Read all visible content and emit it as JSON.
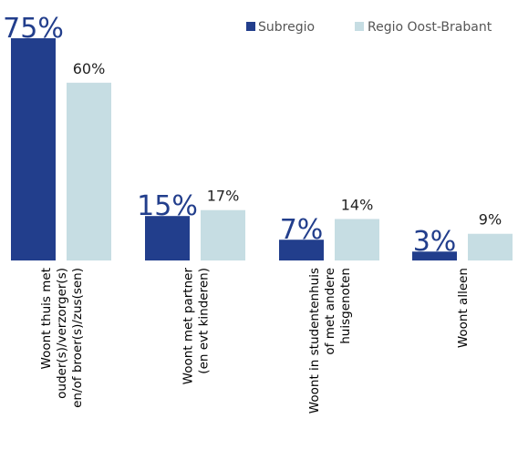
{
  "chart_data": {
    "type": "bar",
    "categories": [
      [
        "Woont thuis met",
        "ouder(s)/verzorger(s)",
        "en/of broer(s)/zus(sen)"
      ],
      [
        "Woont met partner",
        "(en evt kinderen)"
      ],
      [
        "Woont in studentenhuis",
        "of met andere",
        "huisgenoten"
      ],
      [
        "Woont alleen"
      ]
    ],
    "series": [
      {
        "name": "Subregio",
        "values": [
          75,
          15,
          7,
          3
        ],
        "labels": [
          "75%",
          "15%",
          "7%",
          "3%"
        ],
        "color": "#223e8c"
      },
      {
        "name": "Regio Oost-Brabant",
        "values": [
          60,
          17,
          14,
          9
        ],
        "labels": [
          "60%",
          "17%",
          "14%",
          "9%"
        ],
        "color": "#c6dde3"
      }
    ],
    "legend_position": "top-right",
    "grid": false,
    "title": "",
    "xlabel": "",
    "ylabel": "",
    "ylim": [
      0,
      75
    ]
  }
}
